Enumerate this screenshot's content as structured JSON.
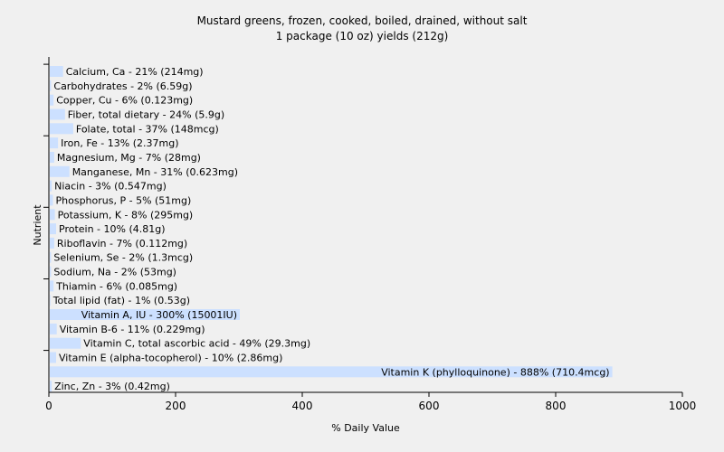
{
  "chart_data": {
    "type": "bar",
    "orientation": "horizontal",
    "title": "Mustard greens, frozen, cooked, boiled, drained, without salt",
    "subtitle": "1 package (10 oz) yields (212g)",
    "xlabel": "% Daily Value",
    "ylabel": "Nutrient",
    "xlim": [
      0,
      1000
    ],
    "xticks": [
      "0",
      "200",
      "400",
      "600",
      "800",
      "1000"
    ],
    "grid": false,
    "legend": "none",
    "colors": {
      "bar": "#cce0ff",
      "background": "#f0f0f0",
      "axis": "#000000"
    },
    "categories": [
      "Calcium, Ca",
      "Carbohydrates",
      "Copper, Cu",
      "Fiber, total dietary",
      "Folate, total",
      "Iron, Fe",
      "Magnesium, Mg",
      "Manganese, Mn",
      "Niacin",
      "Phosphorus, P",
      "Potassium, K",
      "Protein",
      "Riboflavin",
      "Selenium, Se",
      "Sodium, Na",
      "Thiamin",
      "Total lipid (fat)",
      "Vitamin A, IU",
      "Vitamin B-6",
      "Vitamin C, total ascorbic acid",
      "Vitamin E (alpha-tocopherol)",
      "Vitamin K (phylloquinone)",
      "Zinc, Zn"
    ],
    "values": [
      21,
      2,
      6,
      24,
      37,
      13,
      7,
      31,
      3,
      5,
      8,
      10,
      7,
      2,
      2,
      6,
      1,
      300,
      11,
      49,
      10,
      888,
      3
    ],
    "labels": [
      "Calcium, Ca - 21% (214mg)",
      "Carbohydrates - 2% (6.59g)",
      "Copper, Cu - 6% (0.123mg)",
      "Fiber, total dietary - 24% (5.9g)",
      "Folate, total - 37% (148mcg)",
      "Iron, Fe - 13% (2.37mg)",
      "Magnesium, Mg - 7% (28mg)",
      "Manganese, Mn - 31% (0.623mg)",
      "Niacin - 3% (0.547mg)",
      "Phosphorus, P - 5% (51mg)",
      "Potassium, K - 8% (295mg)",
      "Protein - 10% (4.81g)",
      "Riboflavin - 7% (0.112mg)",
      "Selenium, Se - 2% (1.3mcg)",
      "Sodium, Na - 2% (53mg)",
      "Thiamin - 6% (0.085mg)",
      "Total lipid (fat) - 1% (0.53g)",
      "Vitamin A, IU - 300% (15001IU)",
      "Vitamin B-6 - 11% (0.229mg)",
      "Vitamin C, total ascorbic acid - 49% (29.3mg)",
      "Vitamin E (alpha-tocopherol) - 10% (2.86mg)",
      "Vitamin K (phylloquinone) - 888% (710.4mcg)",
      "Zinc, Zn - 3% (0.42mg)"
    ]
  }
}
